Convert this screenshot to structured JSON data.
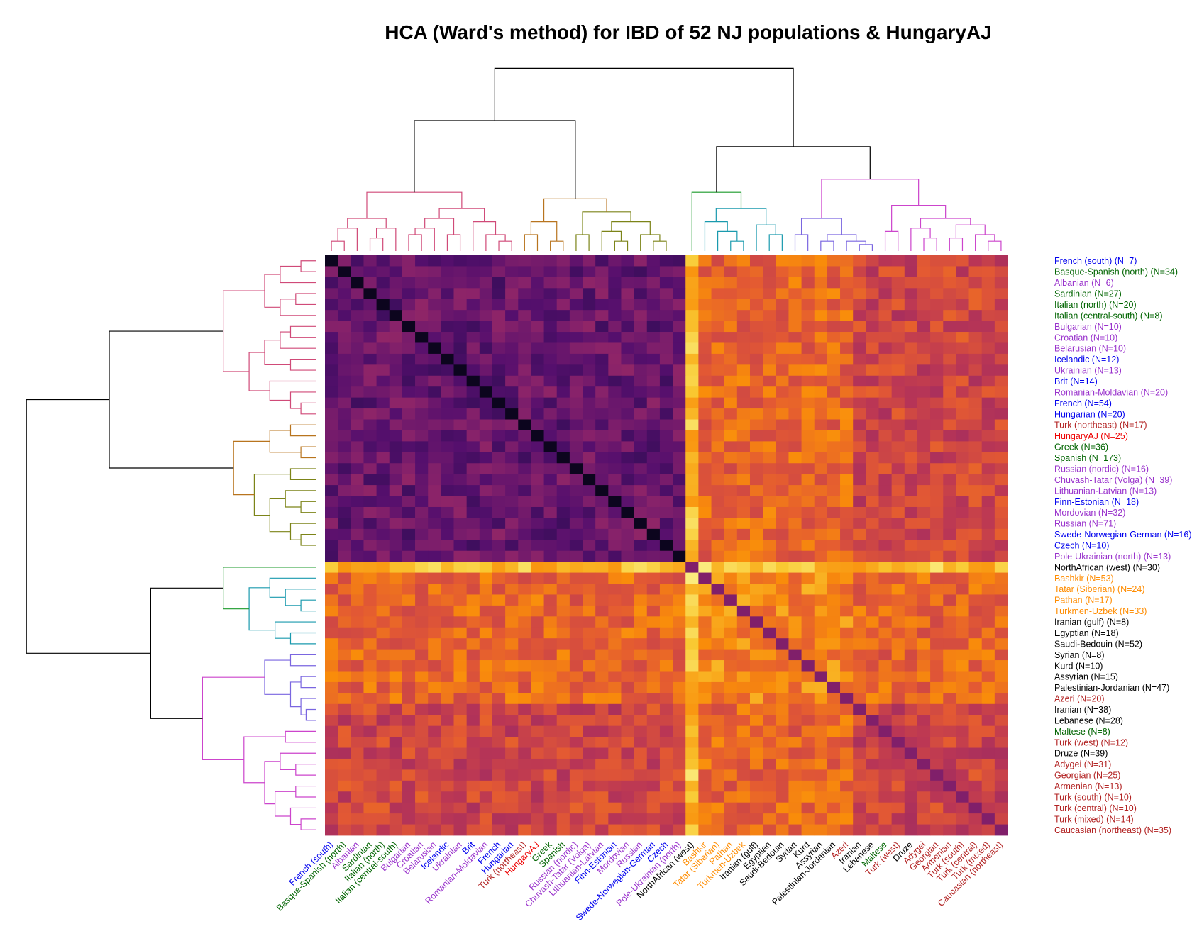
{
  "chart_data": {
    "type": "heatmap",
    "title": "HCA (Ward's method) for IBD of 52 NJ populations & HungaryAJ",
    "colormap": "inferno (dark = high similarity, light = low)",
    "clusters": [
      {
        "color": "#d04a78",
        "members": [
          0,
          1,
          2,
          3,
          4,
          5,
          6,
          7,
          8,
          9,
          10,
          11,
          12,
          13
        ]
      },
      {
        "color": "#b8741e",
        "members": [
          14,
          15,
          16,
          17
        ]
      },
      {
        "color": "#7c8418",
        "members": [
          18,
          19,
          20,
          21,
          22,
          23,
          24,
          25
        ]
      },
      {
        "color": "#1a9a2a",
        "members": [
          26
        ]
      },
      {
        "color": "#1a9aae",
        "members": [
          27,
          28,
          29,
          30,
          31,
          32,
          33
        ]
      },
      {
        "color": "#7a66e0",
        "members": [
          34,
          35,
          36,
          37,
          38,
          39,
          40
        ]
      },
      {
        "color": "#cc44cc",
        "members": [
          41,
          42,
          43,
          44,
          45,
          46,
          47,
          48,
          49,
          50,
          51,
          52
        ]
      }
    ],
    "populations": [
      {
        "name": "French (south)",
        "n": 7,
        "color": "#0000ee"
      },
      {
        "name": "Basque-Spanish (north)",
        "n": 34,
        "color": "#006400"
      },
      {
        "name": "Albanian",
        "n": 6,
        "color": "#9932cc"
      },
      {
        "name": "Sardinian",
        "n": 27,
        "color": "#006400"
      },
      {
        "name": "Italian (north)",
        "n": 20,
        "color": "#006400"
      },
      {
        "name": "Italian (central-south)",
        "n": 8,
        "color": "#006400"
      },
      {
        "name": "Bulgarian",
        "n": 10,
        "color": "#9932cc"
      },
      {
        "name": "Croatian",
        "n": 10,
        "color": "#9932cc"
      },
      {
        "name": "Belarusian",
        "n": 10,
        "color": "#9932cc"
      },
      {
        "name": "Icelandic",
        "n": 12,
        "color": "#0000ee"
      },
      {
        "name": "Ukrainian",
        "n": 13,
        "color": "#9932cc"
      },
      {
        "name": "Brit",
        "n": 14,
        "color": "#0000ee"
      },
      {
        "name": "Romanian-Moldavian",
        "n": 20,
        "color": "#9932cc"
      },
      {
        "name": "French",
        "n": 54,
        "color": "#0000ee"
      },
      {
        "name": "Hungarian",
        "n": 20,
        "color": "#0000ee"
      },
      {
        "name": "Turk (northeast)",
        "n": 17,
        "color": "#b22222"
      },
      {
        "name": "HungaryAJ",
        "n": 25,
        "color": "#ee0000"
      },
      {
        "name": "Greek",
        "n": 36,
        "color": "#006400"
      },
      {
        "name": "Spanish",
        "n": 173,
        "color": "#006400"
      },
      {
        "name": "Russian (nordic)",
        "n": 16,
        "color": "#9932cc"
      },
      {
        "name": "Chuvash-Tatar (Volga)",
        "n": 39,
        "color": "#9932cc"
      },
      {
        "name": "Lithuanian-Latvian",
        "n": 13,
        "color": "#9932cc"
      },
      {
        "name": "Finn-Estonian",
        "n": 18,
        "color": "#0000ee"
      },
      {
        "name": "Mordovian",
        "n": 32,
        "color": "#9932cc"
      },
      {
        "name": "Russian",
        "n": 71,
        "color": "#9932cc"
      },
      {
        "name": "Swede-Norwegian-German",
        "n": 16,
        "color": "#0000ee"
      },
      {
        "name": "Czech",
        "n": 10,
        "color": "#0000ee"
      },
      {
        "name": "Pole-Ukrainian (north)",
        "n": 13,
        "color": "#9932cc"
      },
      {
        "name": "NorthAfrican (west)",
        "n": 30,
        "color": "#000000"
      },
      {
        "name": "Bashkir",
        "n": 53,
        "color": "#ff8c00"
      },
      {
        "name": "Tatar (Siberian)",
        "n": 24,
        "color": "#ff8c00"
      },
      {
        "name": "Pathan",
        "n": 17,
        "color": "#ff8c00"
      },
      {
        "name": "Turkmen-Uzbek",
        "n": 33,
        "color": "#ff8c00"
      },
      {
        "name": "Iranian (gulf)",
        "n": 8,
        "color": "#000000"
      },
      {
        "name": "Egyptian",
        "n": 18,
        "color": "#000000"
      },
      {
        "name": "Saudi-Bedouin",
        "n": 52,
        "color": "#000000"
      },
      {
        "name": "Syrian",
        "n": 8,
        "color": "#000000"
      },
      {
        "name": "Kurd",
        "n": 10,
        "color": "#000000"
      },
      {
        "name": "Assyrian",
        "n": 15,
        "color": "#000000"
      },
      {
        "name": "Palestinian-Jordanian",
        "n": 47,
        "color": "#000000"
      },
      {
        "name": "Azeri",
        "n": 20,
        "color": "#b22222"
      },
      {
        "name": "Iranian",
        "n": 38,
        "color": "#000000"
      },
      {
        "name": "Lebanese",
        "n": 28,
        "color": "#000000"
      },
      {
        "name": "Maltese",
        "n": 8,
        "color": "#006400"
      },
      {
        "name": "Turk (west)",
        "n": 12,
        "color": "#b22222"
      },
      {
        "name": "Druze",
        "n": 39,
        "color": "#000000"
      },
      {
        "name": "Adygei",
        "n": 31,
        "color": "#b22222"
      },
      {
        "name": "Georgian",
        "n": 25,
        "color": "#b22222"
      },
      {
        "name": "Armenian",
        "n": 13,
        "color": "#b22222"
      },
      {
        "name": "Turk (south)",
        "n": 10,
        "color": "#b22222"
      },
      {
        "name": "Turk (central)",
        "n": 10,
        "color": "#b22222"
      },
      {
        "name": "Turk (mixed)",
        "n": 14,
        "color": "#b22222"
      },
      {
        "name": "Caucasian (northeast)",
        "n": 35,
        "color": "#b22222"
      }
    ]
  }
}
